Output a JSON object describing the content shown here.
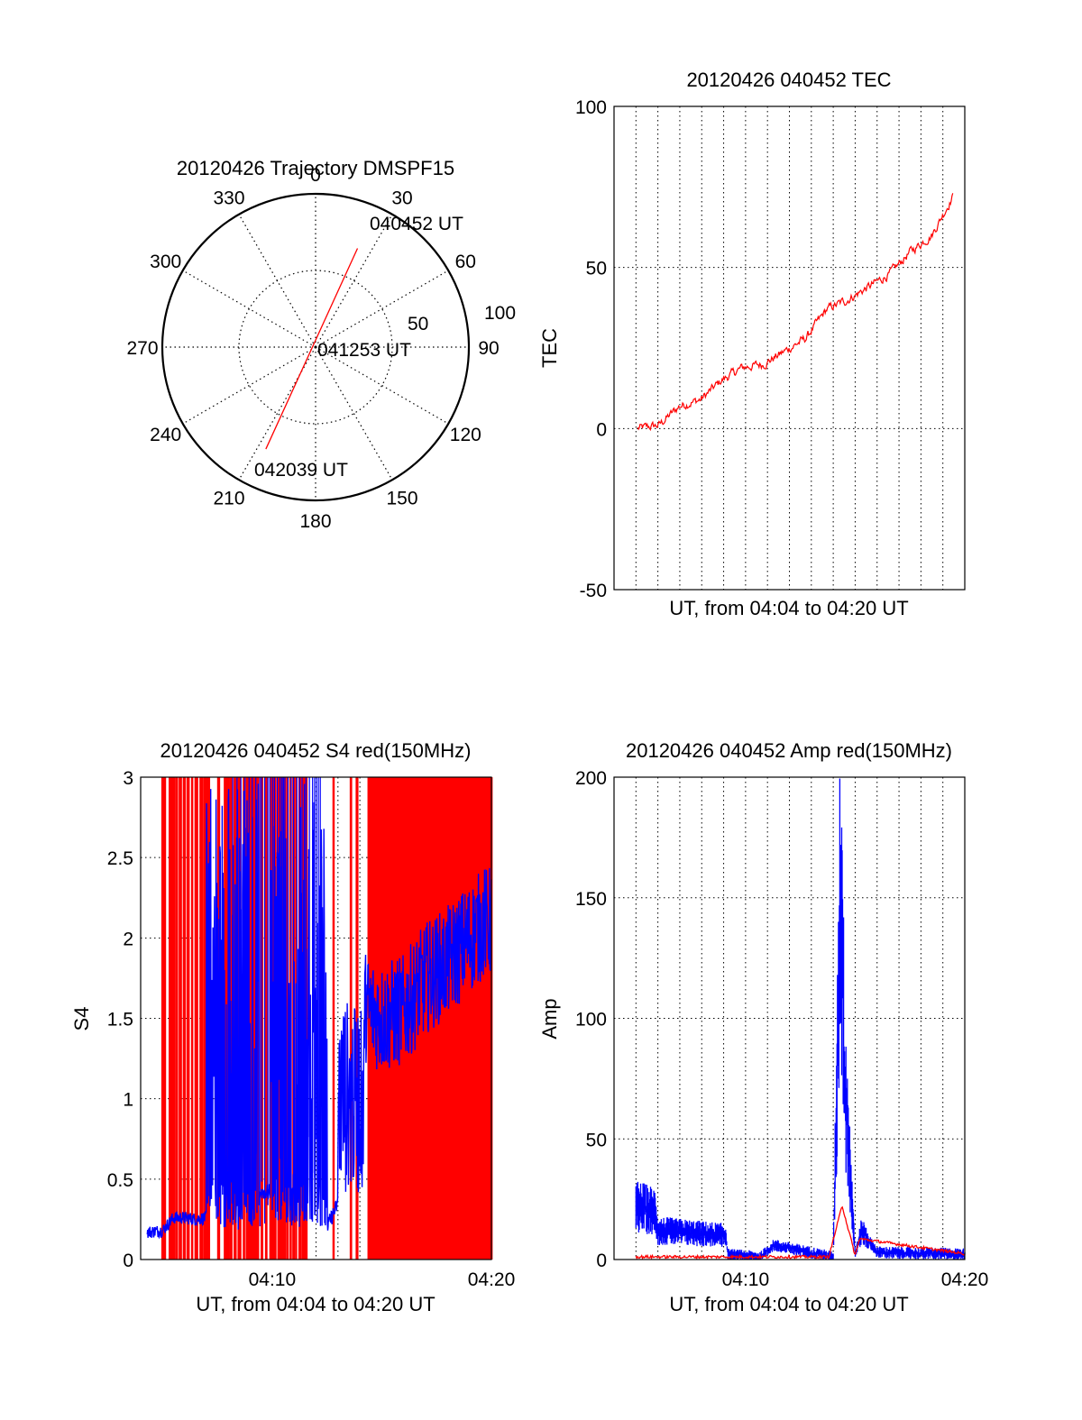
{
  "colors": {
    "red_channel": "#ff0000",
    "blue_channel": "#0000ff",
    "axes": "#000000",
    "grid": "#000000"
  },
  "chart_data": [
    {
      "type": "scatter",
      "subtype": "polar-trajectory",
      "title": "20120426 Trajectory DMSPF15",
      "azimuth_labels": [
        "0",
        "30",
        "60",
        "90",
        "120",
        "150",
        "180",
        "210",
        "240",
        "270",
        "300",
        "330"
      ],
      "radial_labels": [
        "50",
        "100"
      ],
      "radial_range": [
        0,
        100
      ],
      "grid": true,
      "track_color": "#ff0000",
      "track": [
        {
          "label": "040452 UT",
          "azimuth": 23,
          "radius": 70
        },
        {
          "label": "041253 UT",
          "azimuth": 0,
          "radius": 0
        },
        {
          "label": "042039 UT",
          "azimuth": 206,
          "radius": 74
        }
      ]
    },
    {
      "type": "line",
      "title": "20120426 040452 TEC",
      "xlabel": "UT, from 04:04 to 04:20 UT",
      "ylabel": "TEC",
      "ylim": [
        -50,
        100
      ],
      "yticks": [
        "-50",
        "0",
        "50",
        "100"
      ],
      "grid": true,
      "series": [
        {
          "color": "#ff0000",
          "x_minutes": [
            0,
            1,
            2,
            3,
            4,
            5,
            6,
            7,
            8,
            9,
            10,
            11,
            12,
            13,
            14,
            15
          ],
          "values": [
            0,
            1,
            7,
            9,
            15,
            19,
            20,
            24,
            28,
            37,
            40,
            44,
            48,
            55,
            60,
            72
          ]
        }
      ]
    },
    {
      "type": "line",
      "title": "20120426 040452 S4 red(150MHz)",
      "xlabel": "UT, from 04:04 to 04:20 UT",
      "ylabel": "S4",
      "xlim": [
        "04:04",
        "04:20"
      ],
      "xticks": [
        "04:10",
        "04:20"
      ],
      "ylim": [
        0,
        3
      ],
      "yticks": [
        "0",
        "0.5",
        "1",
        "1.5",
        "2",
        "2.5",
        "3"
      ],
      "grid": true,
      "series": [
        {
          "color": "#ff0000",
          "note": "many spikes saturating at 3"
        },
        {
          "color": "#0000ff",
          "x_minutes": [
            0.3,
            1.0,
            1.5,
            2.0,
            2.5,
            3.0,
            5.5,
            8.5,
            9.3,
            10.0,
            11.0,
            12.0,
            13.0,
            14.0,
            15.0,
            15.7
          ],
          "values": [
            0.17,
            0.18,
            0.26,
            0.26,
            0.25,
            0.26,
            0.43,
            0.2,
            0.44,
            1.6,
            1.5,
            1.55,
            1.75,
            1.85,
            2.0,
            2.1
          ]
        }
      ]
    },
    {
      "type": "line",
      "title": "20120426 040452 Amp red(150MHz)",
      "xlabel": "UT, from 04:04 to 04:20 UT",
      "ylabel": "Amp",
      "xlim": [
        "04:04",
        "04:20"
      ],
      "xticks": [
        "04:10",
        "04:20"
      ],
      "ylim": [
        0,
        200
      ],
      "yticks": [
        "0",
        "50",
        "100",
        "150",
        "200"
      ],
      "grid": true,
      "series": [
        {
          "color": "#0000ff",
          "x_minutes": [
            0.0,
            0.9,
            1.0,
            4.1,
            4.2,
            5.7,
            6.3,
            9.0,
            9.2,
            9.35,
            9.5,
            10.0,
            10.3,
            11.0,
            16.0
          ],
          "values": [
            22,
            20,
            12,
            10,
            2,
            1,
            6,
            1,
            90,
            165,
            80,
            2,
            12,
            3,
            2
          ]
        },
        {
          "color": "#ff0000",
          "x_minutes": [
            0.0,
            8.8,
            9.3,
            9.4,
            10.0,
            10.2,
            16.0
          ],
          "values": [
            0.5,
            0.5,
            18,
            22,
            1,
            8,
            0.5
          ]
        }
      ]
    }
  ]
}
